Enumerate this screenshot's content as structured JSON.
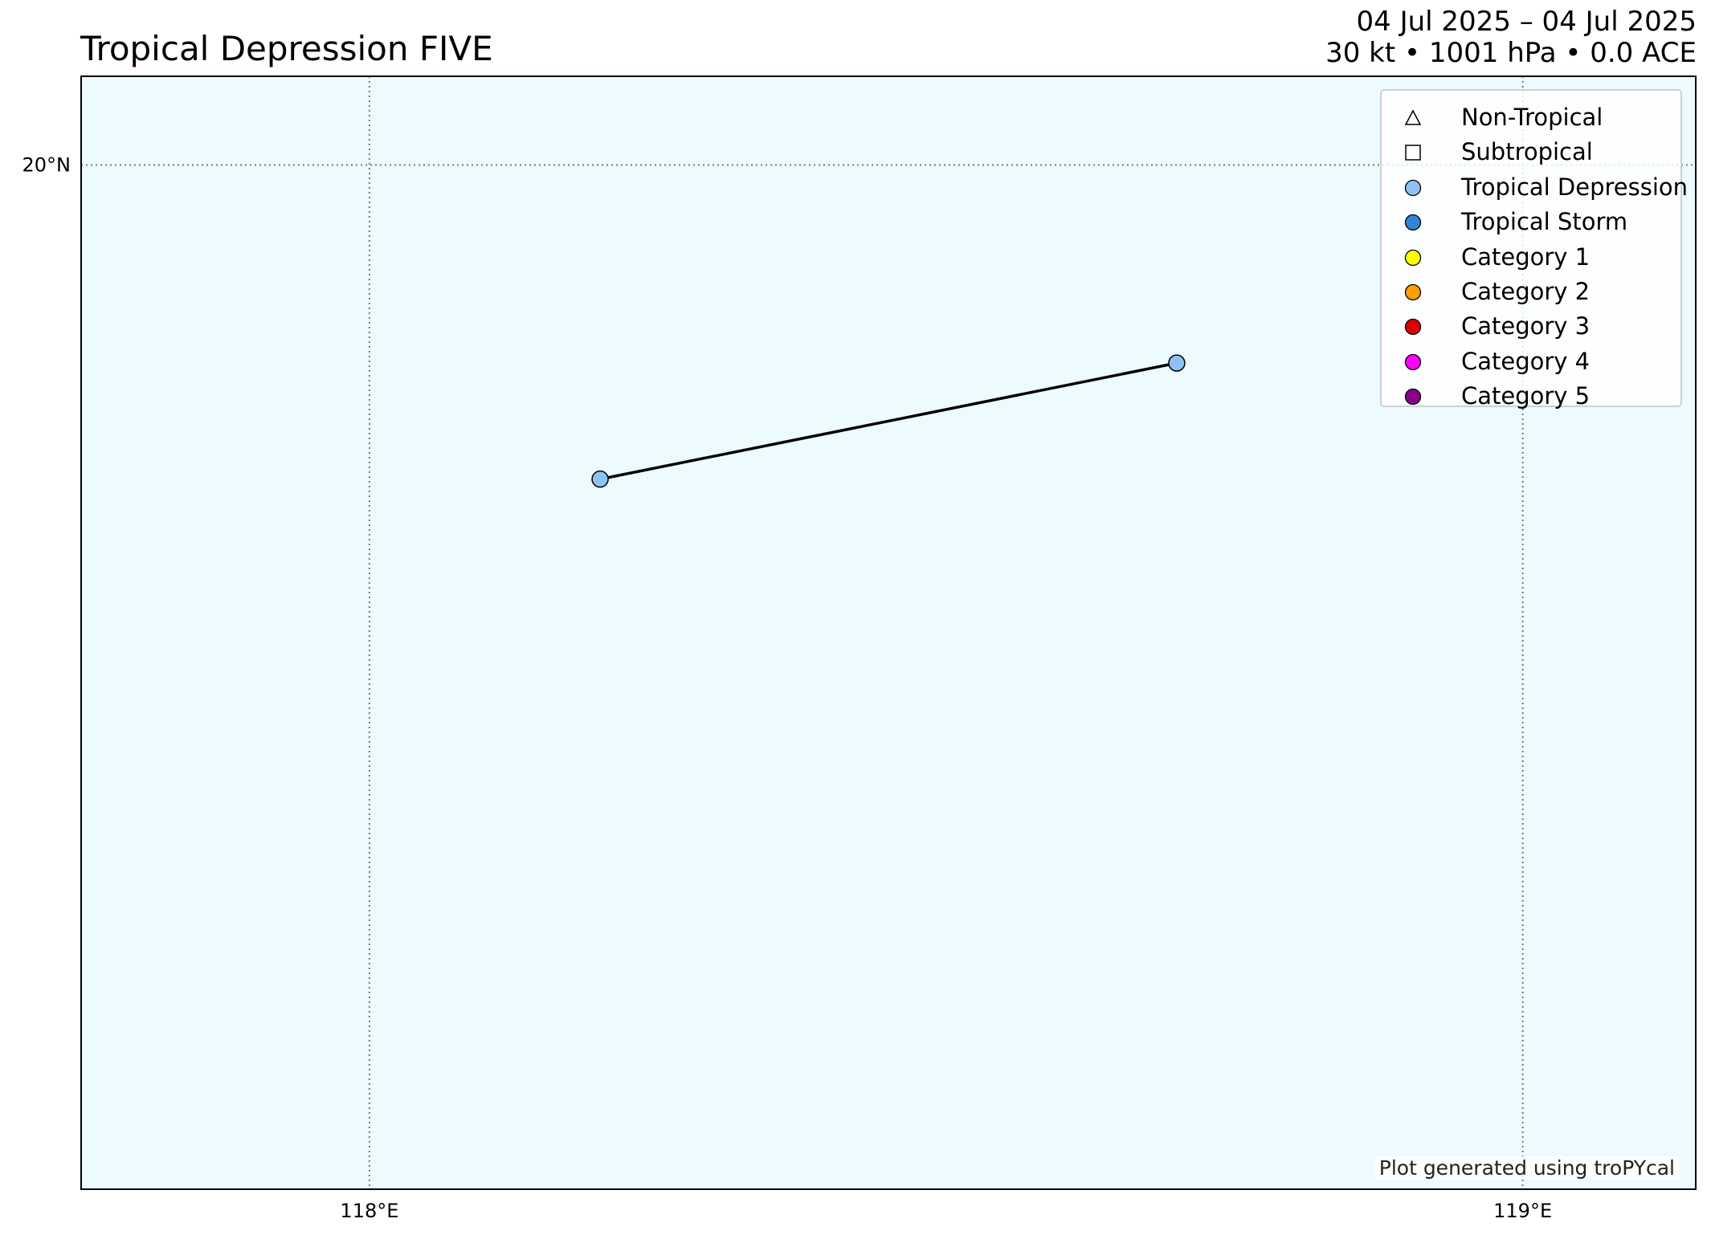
{
  "title": "Tropical Depression FIVE",
  "info": {
    "dates": "04 Jul 2025 – 04 Jul 2025",
    "stats": "30 kt • 1001 hPa • 0.0 ACE"
  },
  "map": {
    "extent": {
      "lon": [
        117.75,
        119.15
      ],
      "lat": [
        18.5,
        20.13
      ]
    },
    "ocean_color": "#edfaff",
    "gridlines": {
      "lon": [
        {
          "value": 118,
          "label": "118°E"
        },
        {
          "value": 119,
          "label": "119°E"
        }
      ],
      "lat": [
        {
          "value": 20,
          "label": "20°N"
        }
      ]
    }
  },
  "track": {
    "points": [
      {
        "lon": 118.2,
        "lat": 19.54,
        "type": "Tropical Depression"
      },
      {
        "lon": 118.7,
        "lat": 19.71,
        "type": "Tropical Depression"
      }
    ]
  },
  "legend": [
    {
      "label": "Non-Tropical",
      "marker": "triangle",
      "color": "#ffffff"
    },
    {
      "label": "Subtropical",
      "marker": "square",
      "color": "#ffffff"
    },
    {
      "label": "Tropical Depression",
      "marker": "circle",
      "color": "#8fc2f2"
    },
    {
      "label": "Tropical Storm",
      "marker": "circle",
      "color": "#3185d3"
    },
    {
      "label": "Category 1",
      "marker": "circle",
      "color": "#ffff00"
    },
    {
      "label": "Category 2",
      "marker": "circle",
      "color": "#ff9e00"
    },
    {
      "label": "Category 3",
      "marker": "circle",
      "color": "#dd0000"
    },
    {
      "label": "Category 4",
      "marker": "circle",
      "color": "#ff00fc"
    },
    {
      "label": "Category 5",
      "marker": "circle",
      "color": "#8b0088"
    }
  ],
  "credit": "Plot generated using troPYcal"
}
